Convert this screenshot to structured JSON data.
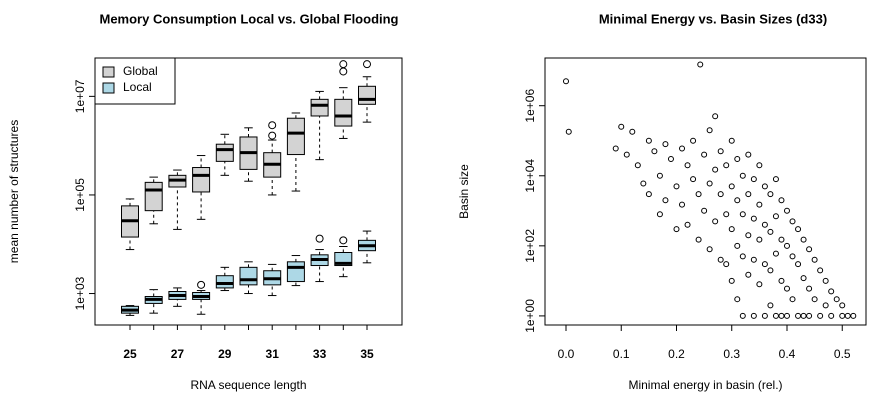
{
  "chart_data": [
    {
      "type": "boxplot",
      "title": "Memory Consumption Local vs. Global Flooding",
      "x_label": "RNA sequence length",
      "y_label": "mean number of structures",
      "categories": [
        "25",
        null,
        "27",
        null,
        "29",
        null,
        "31",
        null,
        "33",
        null,
        "35"
      ],
      "log_y": true,
      "ylim": [
        230,
        60000000
      ],
      "yticks": [
        {
          "value": 1000,
          "label": "1e+03"
        },
        {
          "value": 100000,
          "label": "1e+05"
        },
        {
          "value": 10000000,
          "label": "1e+07"
        }
      ],
      "legend": "top-left",
      "series": [
        {
          "name": "Global",
          "color": "#d3d3d3",
          "whisker_low": [
            7800,
            26000,
            20000,
            32000,
            250000,
            190000,
            100000,
            120000,
            520000,
            1400000,
            3000000
          ],
          "q1": [
            14000,
            48000,
            145000,
            115000,
            480000,
            330000,
            230000,
            660000,
            4000000,
            2500000,
            6900000
          ],
          "median": [
            30000,
            126000,
            200000,
            250000,
            830000,
            720000,
            420000,
            1800000,
            6600000,
            4000000,
            8700000
          ],
          "q3": [
            60000,
            180000,
            250000,
            360000,
            1070000,
            1500000,
            720000,
            3600000,
            8700000,
            8700000,
            16000000
          ],
          "whisker_high": [
            83000,
            230000,
            320000,
            630000,
            1700000,
            2300000,
            1300000,
            4600000,
            12600000,
            15000000,
            25000000
          ],
          "outliers": [
            [],
            [],
            [],
            [],
            [],
            [],
            [
              2600000,
              1600000
            ],
            [],
            [],
            [
              45000000,
              32000000
            ],
            [
              45000000
            ]
          ]
        },
        {
          "name": "Local",
          "color": "#add8e6",
          "whisker_low": [
            360,
            400,
            550,
            380,
            1150,
            1000,
            910,
            1450,
            1750,
            2200,
            4200
          ],
          "q1": [
            400,
            630,
            760,
            760,
            1300,
            1500,
            1500,
            1750,
            3700,
            3700,
            7400
          ],
          "median": [
            460,
            760,
            910,
            870,
            1600,
            1900,
            2000,
            3400,
            4900,
            4100,
            9300
          ],
          "q3": [
            550,
            870,
            1100,
            1050,
            2300,
            3400,
            2900,
            4400,
            6100,
            6800,
            12000
          ],
          "whisker_high": [
            570,
            1200,
            1300,
            1150,
            3400,
            4400,
            3900,
            5900,
            7800,
            9000,
            18500
          ],
          "outliers": [
            [],
            [],
            [],
            [
              1500
            ],
            [],
            [],
            [],
            [],
            [
              13000
            ],
            [
              12000
            ],
            []
          ]
        }
      ]
    },
    {
      "type": "scatter",
      "title": "Minimal Energy vs. Basin Sizes (d33)",
      "x_label": "Minimal energy in basin (rel.)",
      "y_label": "Basin size",
      "log_y": true,
      "xlim": [
        -0.038,
        0.543
      ],
      "ylim": [
        0.55,
        23000000
      ],
      "xticks": [
        {
          "value": 0,
          "label": "0.0"
        },
        0.1,
        0.2,
        0.3,
        0.4,
        0.5
      ],
      "yticks": [
        {
          "value": 1,
          "label": "1e+00"
        },
        {
          "value": 100,
          "label": "1e+02"
        },
        {
          "value": 10000,
          "label": "1e+04"
        },
        {
          "value": 1000000,
          "label": "1e+06"
        }
      ],
      "color": "#000000",
      "x": [
        0.0,
        0.005,
        0.243,
        0.09,
        0.1,
        0.11,
        0.12,
        0.13,
        0.14,
        0.15,
        0.15,
        0.16,
        0.17,
        0.17,
        0.18,
        0.18,
        0.19,
        0.2,
        0.2,
        0.21,
        0.21,
        0.22,
        0.22,
        0.23,
        0.23,
        0.24,
        0.24,
        0.25,
        0.25,
        0.26,
        0.26,
        0.26,
        0.27,
        0.27,
        0.27,
        0.28,
        0.28,
        0.28,
        0.29,
        0.29,
        0.29,
        0.3,
        0.3,
        0.3,
        0.3,
        0.31,
        0.31,
        0.31,
        0.31,
        0.32,
        0.32,
        0.32,
        0.32,
        0.33,
        0.33,
        0.33,
        0.33,
        0.34,
        0.34,
        0.34,
        0.34,
        0.35,
        0.35,
        0.35,
        0.35,
        0.36,
        0.36,
        0.36,
        0.36,
        0.37,
        0.37,
        0.37,
        0.37,
        0.38,
        0.38,
        0.38,
        0.38,
        0.39,
        0.39,
        0.39,
        0.39,
        0.4,
        0.4,
        0.4,
        0.4,
        0.41,
        0.41,
        0.41,
        0.42,
        0.42,
        0.42,
        0.43,
        0.43,
        0.43,
        0.44,
        0.44,
        0.44,
        0.45,
        0.45,
        0.46,
        0.46,
        0.47,
        0.47,
        0.48,
        0.48,
        0.49,
        0.5,
        0.5,
        0.51,
        0.52
      ],
      "y": [
        5000000,
        180000,
        15000000,
        60000,
        250000,
        40000,
        180000,
        20000,
        6000,
        100000,
        3000,
        50000,
        10000,
        800,
        80000,
        2000,
        30000,
        5000,
        300,
        60000,
        1500,
        20000,
        400,
        100000,
        8000,
        3000,
        150,
        40000,
        1000,
        200000,
        6000,
        80,
        500000,
        15000,
        500,
        50000,
        3000,
        40,
        20000,
        800,
        30,
        100000,
        5000,
        300,
        10,
        30000,
        2000,
        100,
        3,
        10000,
        800,
        50,
        1,
        40000,
        3000,
        200,
        15,
        8000,
        600,
        40,
        1,
        20000,
        1500,
        150,
        8,
        5000,
        400,
        30,
        1,
        3000,
        250,
        20,
        2,
        8000,
        700,
        60,
        1,
        2000,
        150,
        10,
        1,
        1000,
        100,
        6,
        1,
        500,
        50,
        3,
        300,
        30,
        1,
        150,
        12,
        1,
        80,
        6,
        1,
        40,
        3,
        20,
        1,
        10,
        2,
        5,
        1,
        3,
        2,
        1,
        1,
        1
      ]
    }
  ]
}
